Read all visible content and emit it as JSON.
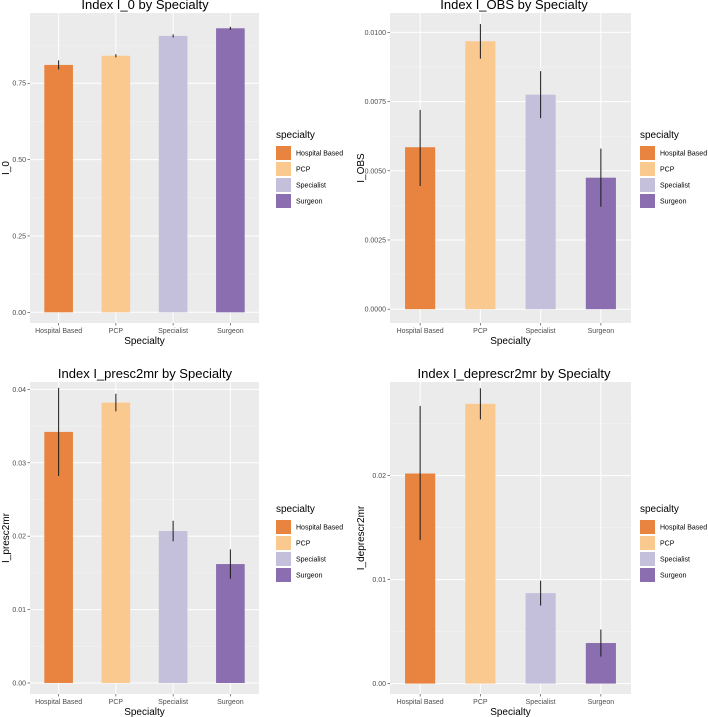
{
  "chart_data": [
    {
      "type": "bar",
      "title": "Index I_0 by Specialty",
      "xlabel": "Specialty",
      "ylabel": "I_0",
      "categories": [
        "Hospital Based",
        "PCP",
        "Specialist",
        "Surgeon"
      ],
      "values": [
        0.81,
        0.84,
        0.905,
        0.93
      ],
      "errors": [
        [
          0.795,
          0.825
        ],
        [
          0.835,
          0.845
        ],
        [
          0.9,
          0.91
        ],
        [
          0.925,
          0.935
        ]
      ],
      "ylim": [
        -0.035,
        0.98
      ],
      "yticks": [
        0,
        0.25,
        0.5,
        0.75
      ],
      "ytick_labels": [
        "0.00",
        "0.25",
        "0.50",
        "0.75"
      ],
      "legend": {
        "title": "specialty",
        "position": "right"
      }
    },
    {
      "type": "bar",
      "title": "Index I_OBS by Specialty",
      "xlabel": "Specialty",
      "ylabel": "I_OBS",
      "categories": [
        "Hospital Based",
        "PCP",
        "Specialist",
        "Surgeon"
      ],
      "values": [
        0.00585,
        0.00968,
        0.00775,
        0.00475
      ],
      "errors": [
        [
          0.00445,
          0.0072
        ],
        [
          0.00905,
          0.0103
        ],
        [
          0.0069,
          0.0086
        ],
        [
          0.0037,
          0.0058
        ]
      ],
      "ylim": [
        -0.0005,
        0.0107
      ],
      "yticks": [
        0,
        0.0025,
        0.005,
        0.0075,
        0.01
      ],
      "ytick_labels": [
        "0.0000",
        "0.0025",
        "0.0050",
        "0.0075",
        "0.0100"
      ],
      "legend": {
        "title": "specialty",
        "position": "right"
      }
    },
    {
      "type": "bar",
      "title": "Index I_presc2mr by Specialty",
      "xlabel": "Specialty",
      "ylabel": "I_presc2mr",
      "categories": [
        "Hospital Based",
        "PCP",
        "Specialist",
        "Surgeon"
      ],
      "values": [
        0.0342,
        0.0382,
        0.0207,
        0.0162
      ],
      "errors": [
        [
          0.0282,
          0.0402
        ],
        [
          0.037,
          0.0394
        ],
        [
          0.0193,
          0.0221
        ],
        [
          0.0142,
          0.0182
        ]
      ],
      "ylim": [
        -0.0015,
        0.041
      ],
      "yticks": [
        0,
        0.01,
        0.02,
        0.03,
        0.04
      ],
      "ytick_labels": [
        "0.00",
        "0.01",
        "0.02",
        "0.03",
        "0.04"
      ],
      "legend": {
        "title": "specialty",
        "position": "right"
      }
    },
    {
      "type": "bar",
      "title": "Index I_deprescr2mr by Specialty",
      "xlabel": "Specialty",
      "ylabel": "I_deprescr2mr",
      "categories": [
        "Hospital Based",
        "PCP",
        "Specialist",
        "Surgeon"
      ],
      "values": [
        0.0202,
        0.0269,
        0.0087,
        0.0039
      ],
      "errors": [
        [
          0.0138,
          0.0267
        ],
        [
          0.0254,
          0.0284
        ],
        [
          0.0075,
          0.0099
        ],
        [
          0.0026,
          0.0052
        ]
      ],
      "ylim": [
        -0.001,
        0.029
      ],
      "yticks": [
        0,
        0.01,
        0.02
      ],
      "ytick_labels": [
        "0.00",
        "0.01",
        "0.02"
      ],
      "legend": {
        "title": "specialty",
        "position": "right"
      }
    }
  ],
  "legend_entries": [
    "Hospital Based",
    "PCP",
    "Specialist",
    "Surgeon"
  ],
  "colors": {
    "Hospital Based": "#e8843f",
    "PCP": "#fac98f",
    "Specialist": "#c4c0dc",
    "Surgeon": "#8a6eb0",
    "errorbar": "#1a1a1a"
  }
}
